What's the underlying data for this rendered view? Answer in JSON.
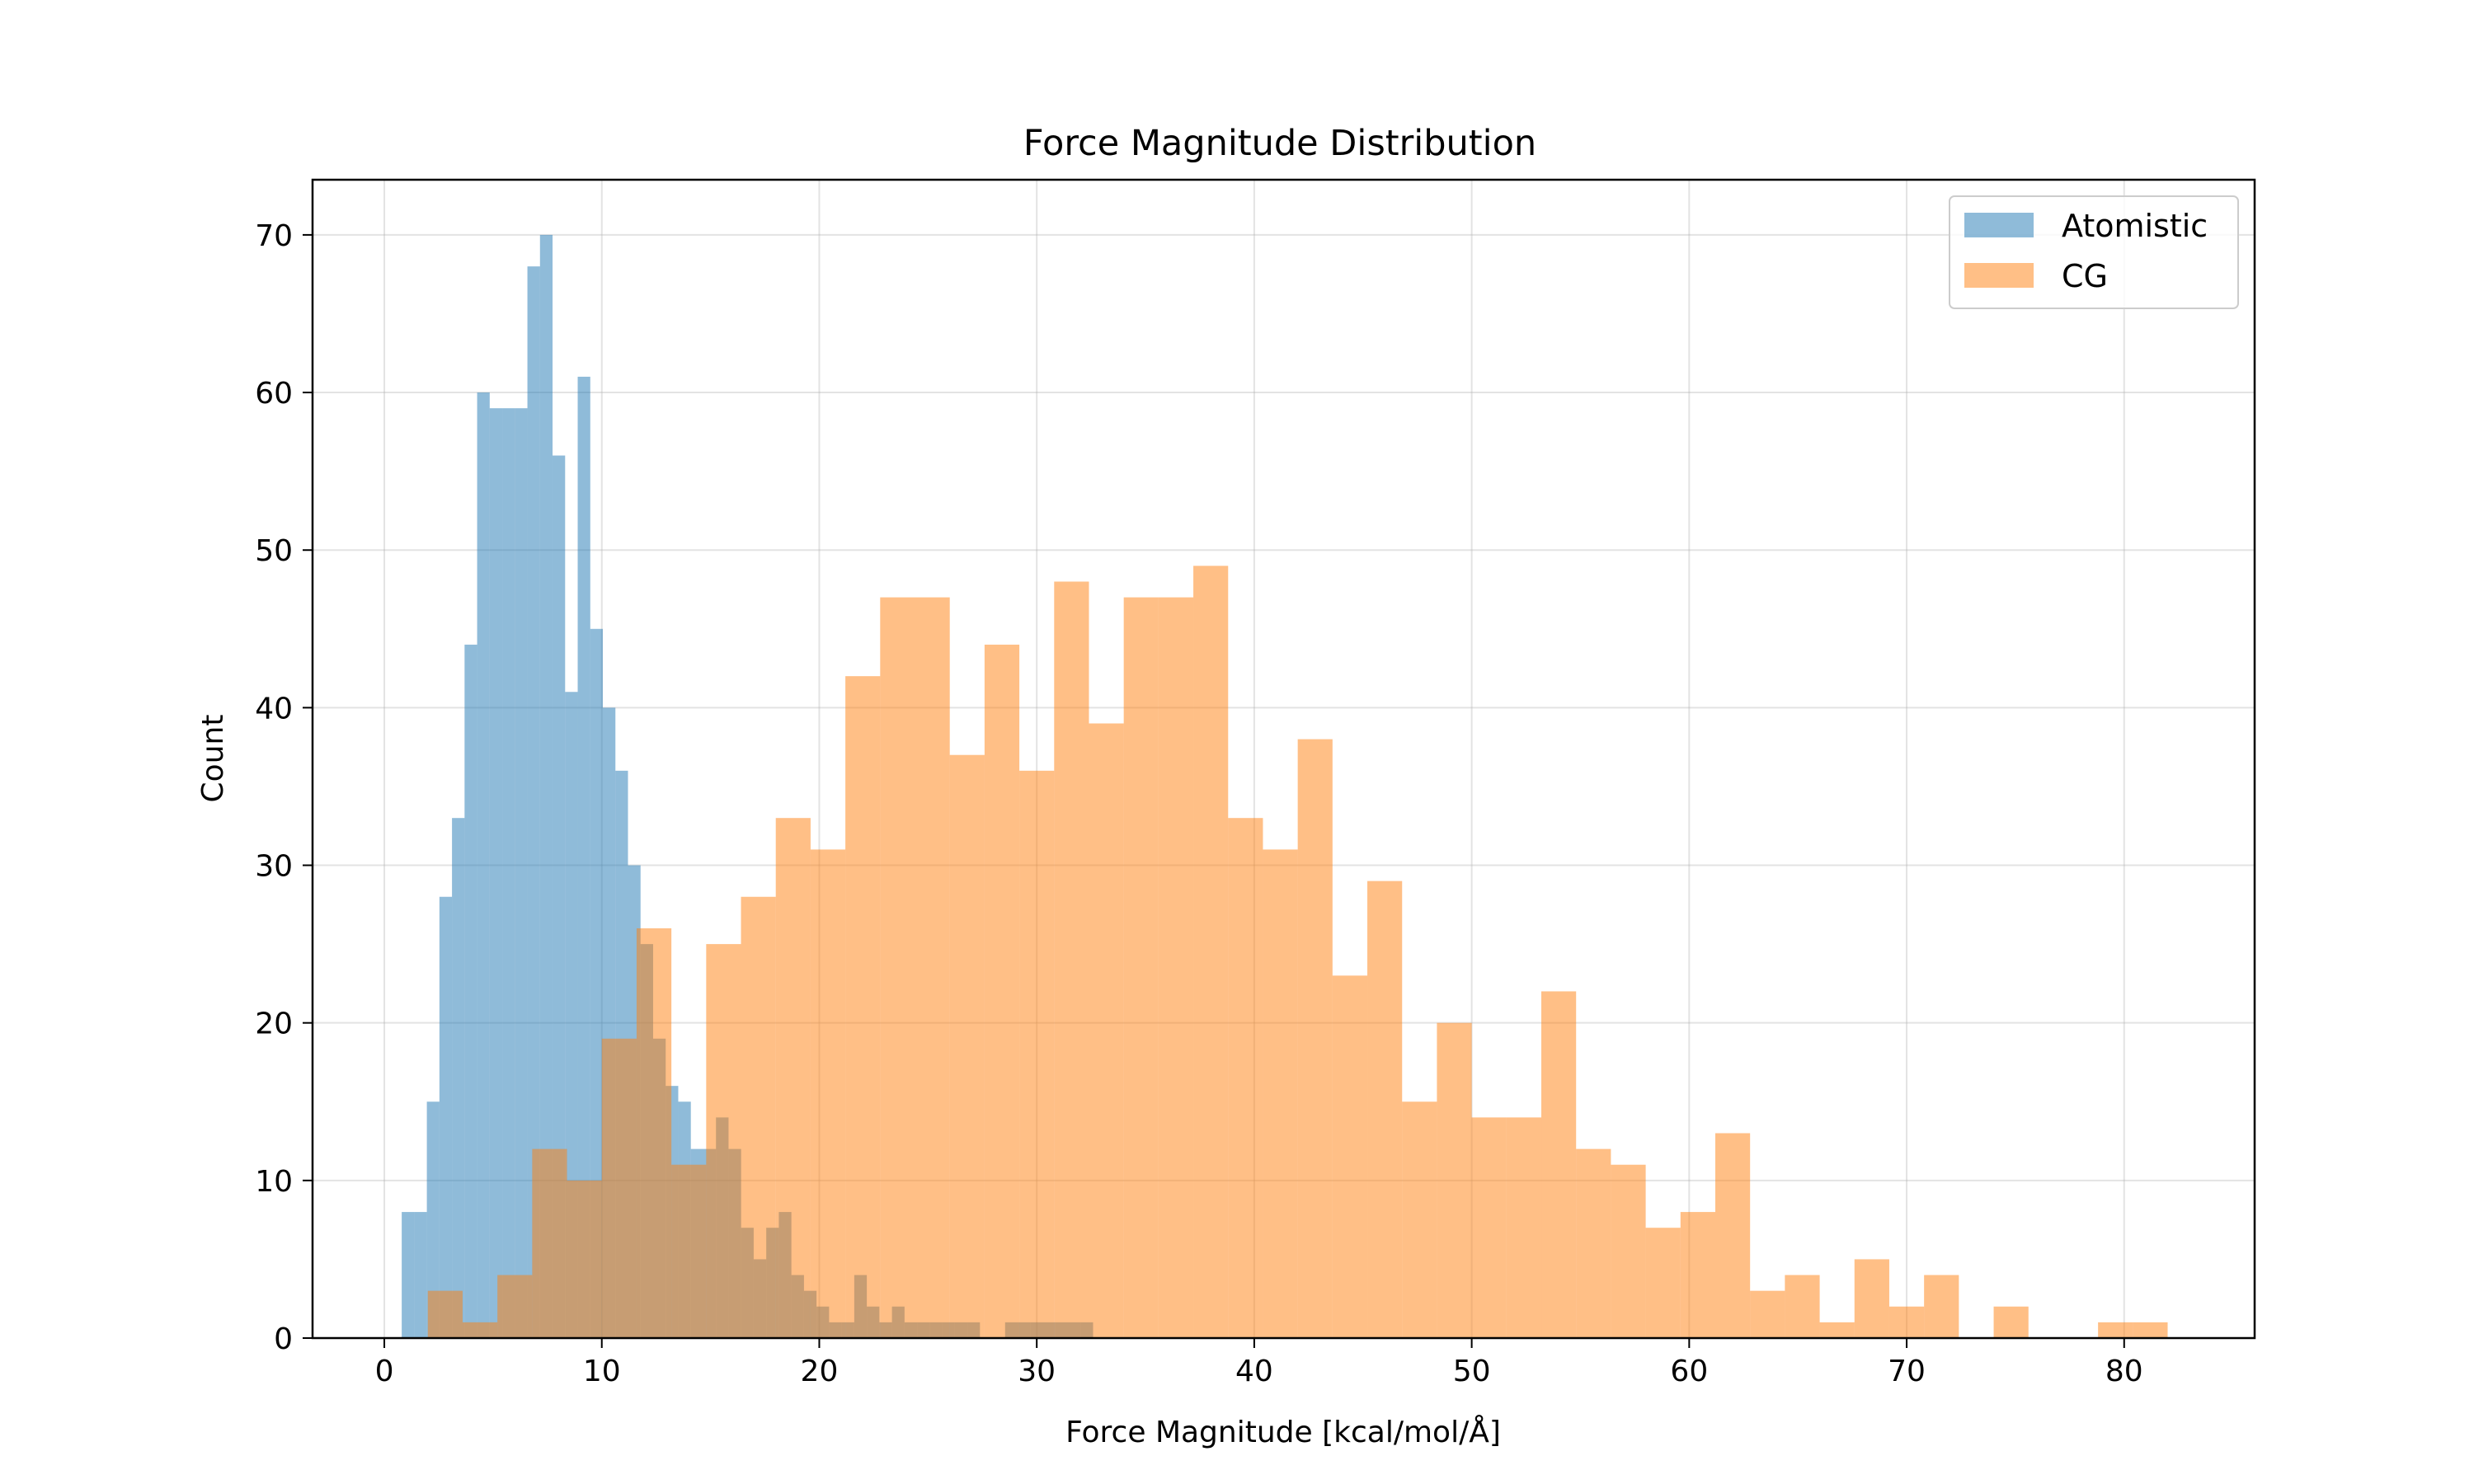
{
  "chart_data": {
    "type": "histogram",
    "title": "Force Magnitude Distribution",
    "xlabel": "Force Magnitude [kcal/mol/Å]",
    "ylabel": "Count",
    "xlim": [
      -3.3,
      86
    ],
    "ylim": [
      0,
      73.5
    ],
    "xticks": [
      0,
      10,
      20,
      30,
      40,
      50,
      60,
      70,
      80
    ],
    "yticks": [
      0,
      10,
      20,
      30,
      40,
      50,
      60,
      70
    ],
    "grid": true,
    "legend_position": "top-right",
    "series": [
      {
        "name": "Atomistic",
        "color": "#1f77b4",
        "opacity": 0.5,
        "bin_start": 0.8,
        "bin_width": 0.578,
        "counts": [
          8,
          8,
          15,
          28,
          33,
          44,
          60,
          59,
          59,
          59,
          68,
          70,
          56,
          41,
          61,
          45,
          40,
          36,
          30,
          25,
          19,
          16,
          15,
          12,
          12,
          14,
          12,
          7,
          5,
          7,
          8,
          4,
          3,
          2,
          1,
          1,
          4,
          2,
          1,
          2,
          1,
          1,
          1,
          1,
          1,
          1,
          0,
          0,
          1,
          1,
          1,
          1,
          1,
          1,
          1
        ]
      },
      {
        "name": "CG",
        "color": "#ff7f0e",
        "opacity": 0.5,
        "bin_start": 2.0,
        "bin_width": 1.6,
        "counts": [
          3,
          1,
          4,
          12,
          10,
          19,
          26,
          11,
          25,
          28,
          33,
          31,
          42,
          47,
          47,
          37,
          44,
          36,
          48,
          39,
          47,
          47,
          49,
          33,
          31,
          38,
          23,
          29,
          15,
          20,
          14,
          14,
          22,
          12,
          11,
          7,
          8,
          13,
          3,
          4,
          1,
          5,
          2,
          4,
          0,
          2,
          0,
          0,
          1,
          1
        ]
      }
    ]
  }
}
